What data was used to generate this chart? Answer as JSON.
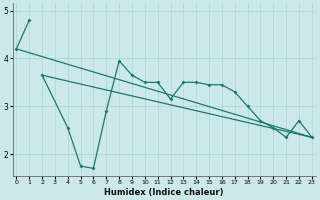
{
  "xlabel": "Humidex (Indice chaleur)",
  "x": [
    0,
    1,
    2,
    3,
    4,
    5,
    6,
    7,
    8,
    9,
    10,
    11,
    12,
    13,
    14,
    15,
    16,
    17,
    18,
    19,
    20,
    21,
    22,
    23
  ],
  "line1_x": [
    0,
    1
  ],
  "line1_y": [
    4.2,
    4.8
  ],
  "line2_x": [
    2,
    4,
    5,
    6,
    7,
    8,
    9,
    10,
    11,
    12,
    13,
    14,
    15,
    16,
    17,
    18,
    19,
    20,
    21,
    22,
    23
  ],
  "line2_y": [
    3.65,
    2.55,
    1.75,
    1.7,
    2.9,
    3.95,
    3.65,
    3.5,
    3.5,
    3.15,
    3.5,
    3.5,
    3.45,
    3.45,
    3.3,
    3.0,
    2.7,
    2.55,
    2.35,
    2.7,
    2.35
  ],
  "line3_x": [
    0,
    23
  ],
  "line3_y": [
    4.2,
    2.35
  ],
  "line4_x": [
    2,
    23
  ],
  "line4_y": [
    3.65,
    2.35
  ],
  "bg_color": "#cce9e9",
  "line_color": "#1a7a6e",
  "grid_color": "#b0d4d4",
  "ylim": [
    1.55,
    5.15
  ],
  "xlim": [
    -0.3,
    23.3
  ],
  "yticks": [
    2,
    3,
    4,
    5
  ],
  "xticks": [
    0,
    1,
    2,
    3,
    4,
    5,
    6,
    7,
    8,
    9,
    10,
    11,
    12,
    13,
    14,
    15,
    16,
    17,
    18,
    19,
    20,
    21,
    22,
    23
  ],
  "xtick_labels": [
    "0",
    "1",
    "2",
    "3",
    "4",
    "5",
    "6",
    "7",
    "8",
    "9",
    "10",
    "11",
    "12",
    "13",
    "14",
    "15",
    "16",
    "17",
    "18",
    "19",
    "20",
    "21",
    "22",
    "23"
  ]
}
